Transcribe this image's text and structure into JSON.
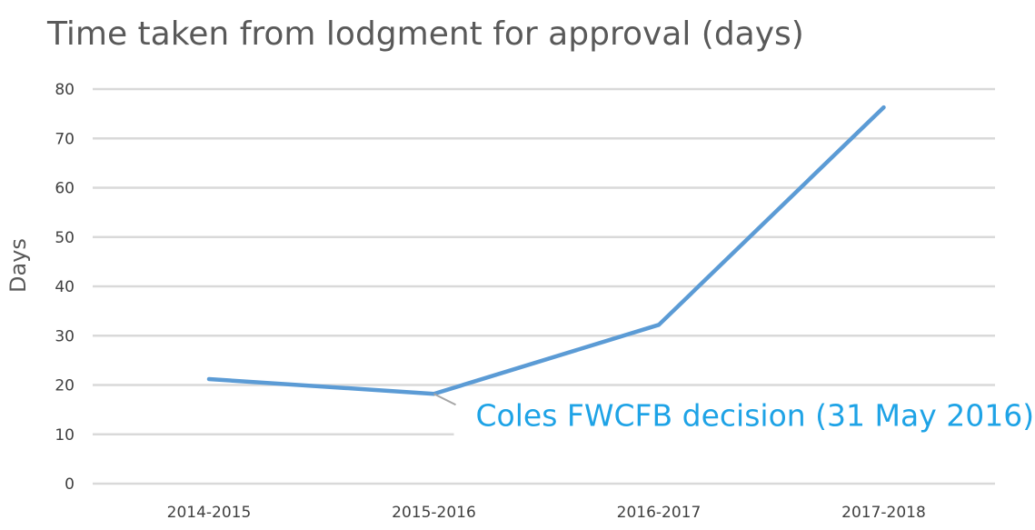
{
  "chart_data": {
    "type": "line",
    "title": "Time taken from lodgment for approval (days)",
    "xlabel": "",
    "ylabel": "Days",
    "categories": [
      "2014-2015",
      "2015-2016",
      "2016-2017",
      "2017-2018"
    ],
    "series": [
      {
        "values": [
          21.2,
          18.2,
          32.2,
          76.3
        ],
        "color": "#5b9bd5"
      }
    ],
    "ylim": [
      0,
      80
    ],
    "yticks": [
      "0",
      "10",
      "20",
      "30",
      "40",
      "50",
      "60",
      "70",
      "80"
    ],
    "grid": true,
    "gridline_color": "#d9d9d9",
    "annotation": {
      "text": "Coles FWCFB decision (31 May 2016)",
      "target_category": "2015-2016",
      "color": "#1ea3e6"
    }
  }
}
